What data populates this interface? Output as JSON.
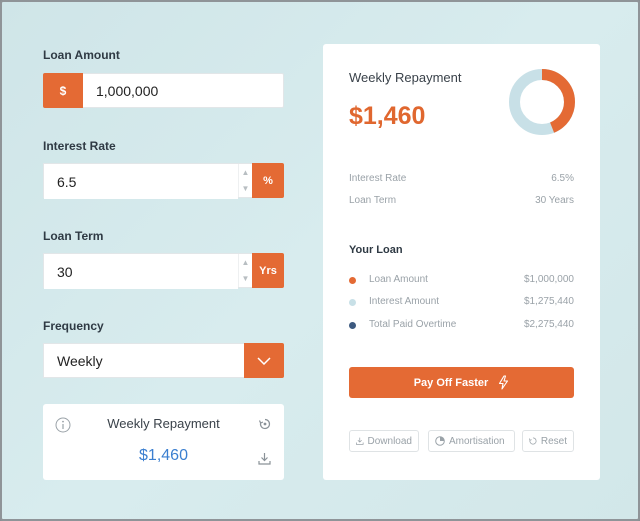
{
  "form": {
    "loan_amount": {
      "label": "Loan Amount",
      "prefix": "$",
      "value": "1,000,000"
    },
    "interest_rate": {
      "label": "Interest Rate",
      "value": "6.5",
      "suffix": "%"
    },
    "loan_term": {
      "label": "Loan Term",
      "value": "30",
      "suffix": "Yrs"
    },
    "frequency": {
      "label": "Frequency",
      "selected": "Weekly"
    }
  },
  "mini_card": {
    "title": "Weekly Repayment",
    "value": "$1,460",
    "icons": [
      "info-icon",
      "refresh-icon",
      "download-icon"
    ]
  },
  "summary": {
    "title": "Weekly Repayment",
    "value": "$1,460",
    "interest_rate_label": "Interest Rate",
    "interest_rate_value": "6.5%",
    "loan_term_label": "Loan Term",
    "loan_term_value": "30 Years",
    "donut": {
      "principal": 1000000,
      "interest": 1275440
    }
  },
  "your_loan": {
    "title": "Your Loan",
    "items": [
      {
        "label": "Loan Amount",
        "value": "$1,000,000",
        "color": "#e46a34"
      },
      {
        "label": "Interest Amount",
        "value": "$1,275,440",
        "color": "#c8e0e7"
      },
      {
        "label": "Total Paid Overtime",
        "value": "$2,275,440",
        "color": "#3d5a80"
      }
    ]
  },
  "actions": {
    "pay_off": "Pay Off Faster",
    "download": "Download",
    "amortisation": "Amortisation",
    "reset": "Reset"
  },
  "colors": {
    "accent": "#e46a34",
    "link_blue": "#3b7fd0"
  }
}
